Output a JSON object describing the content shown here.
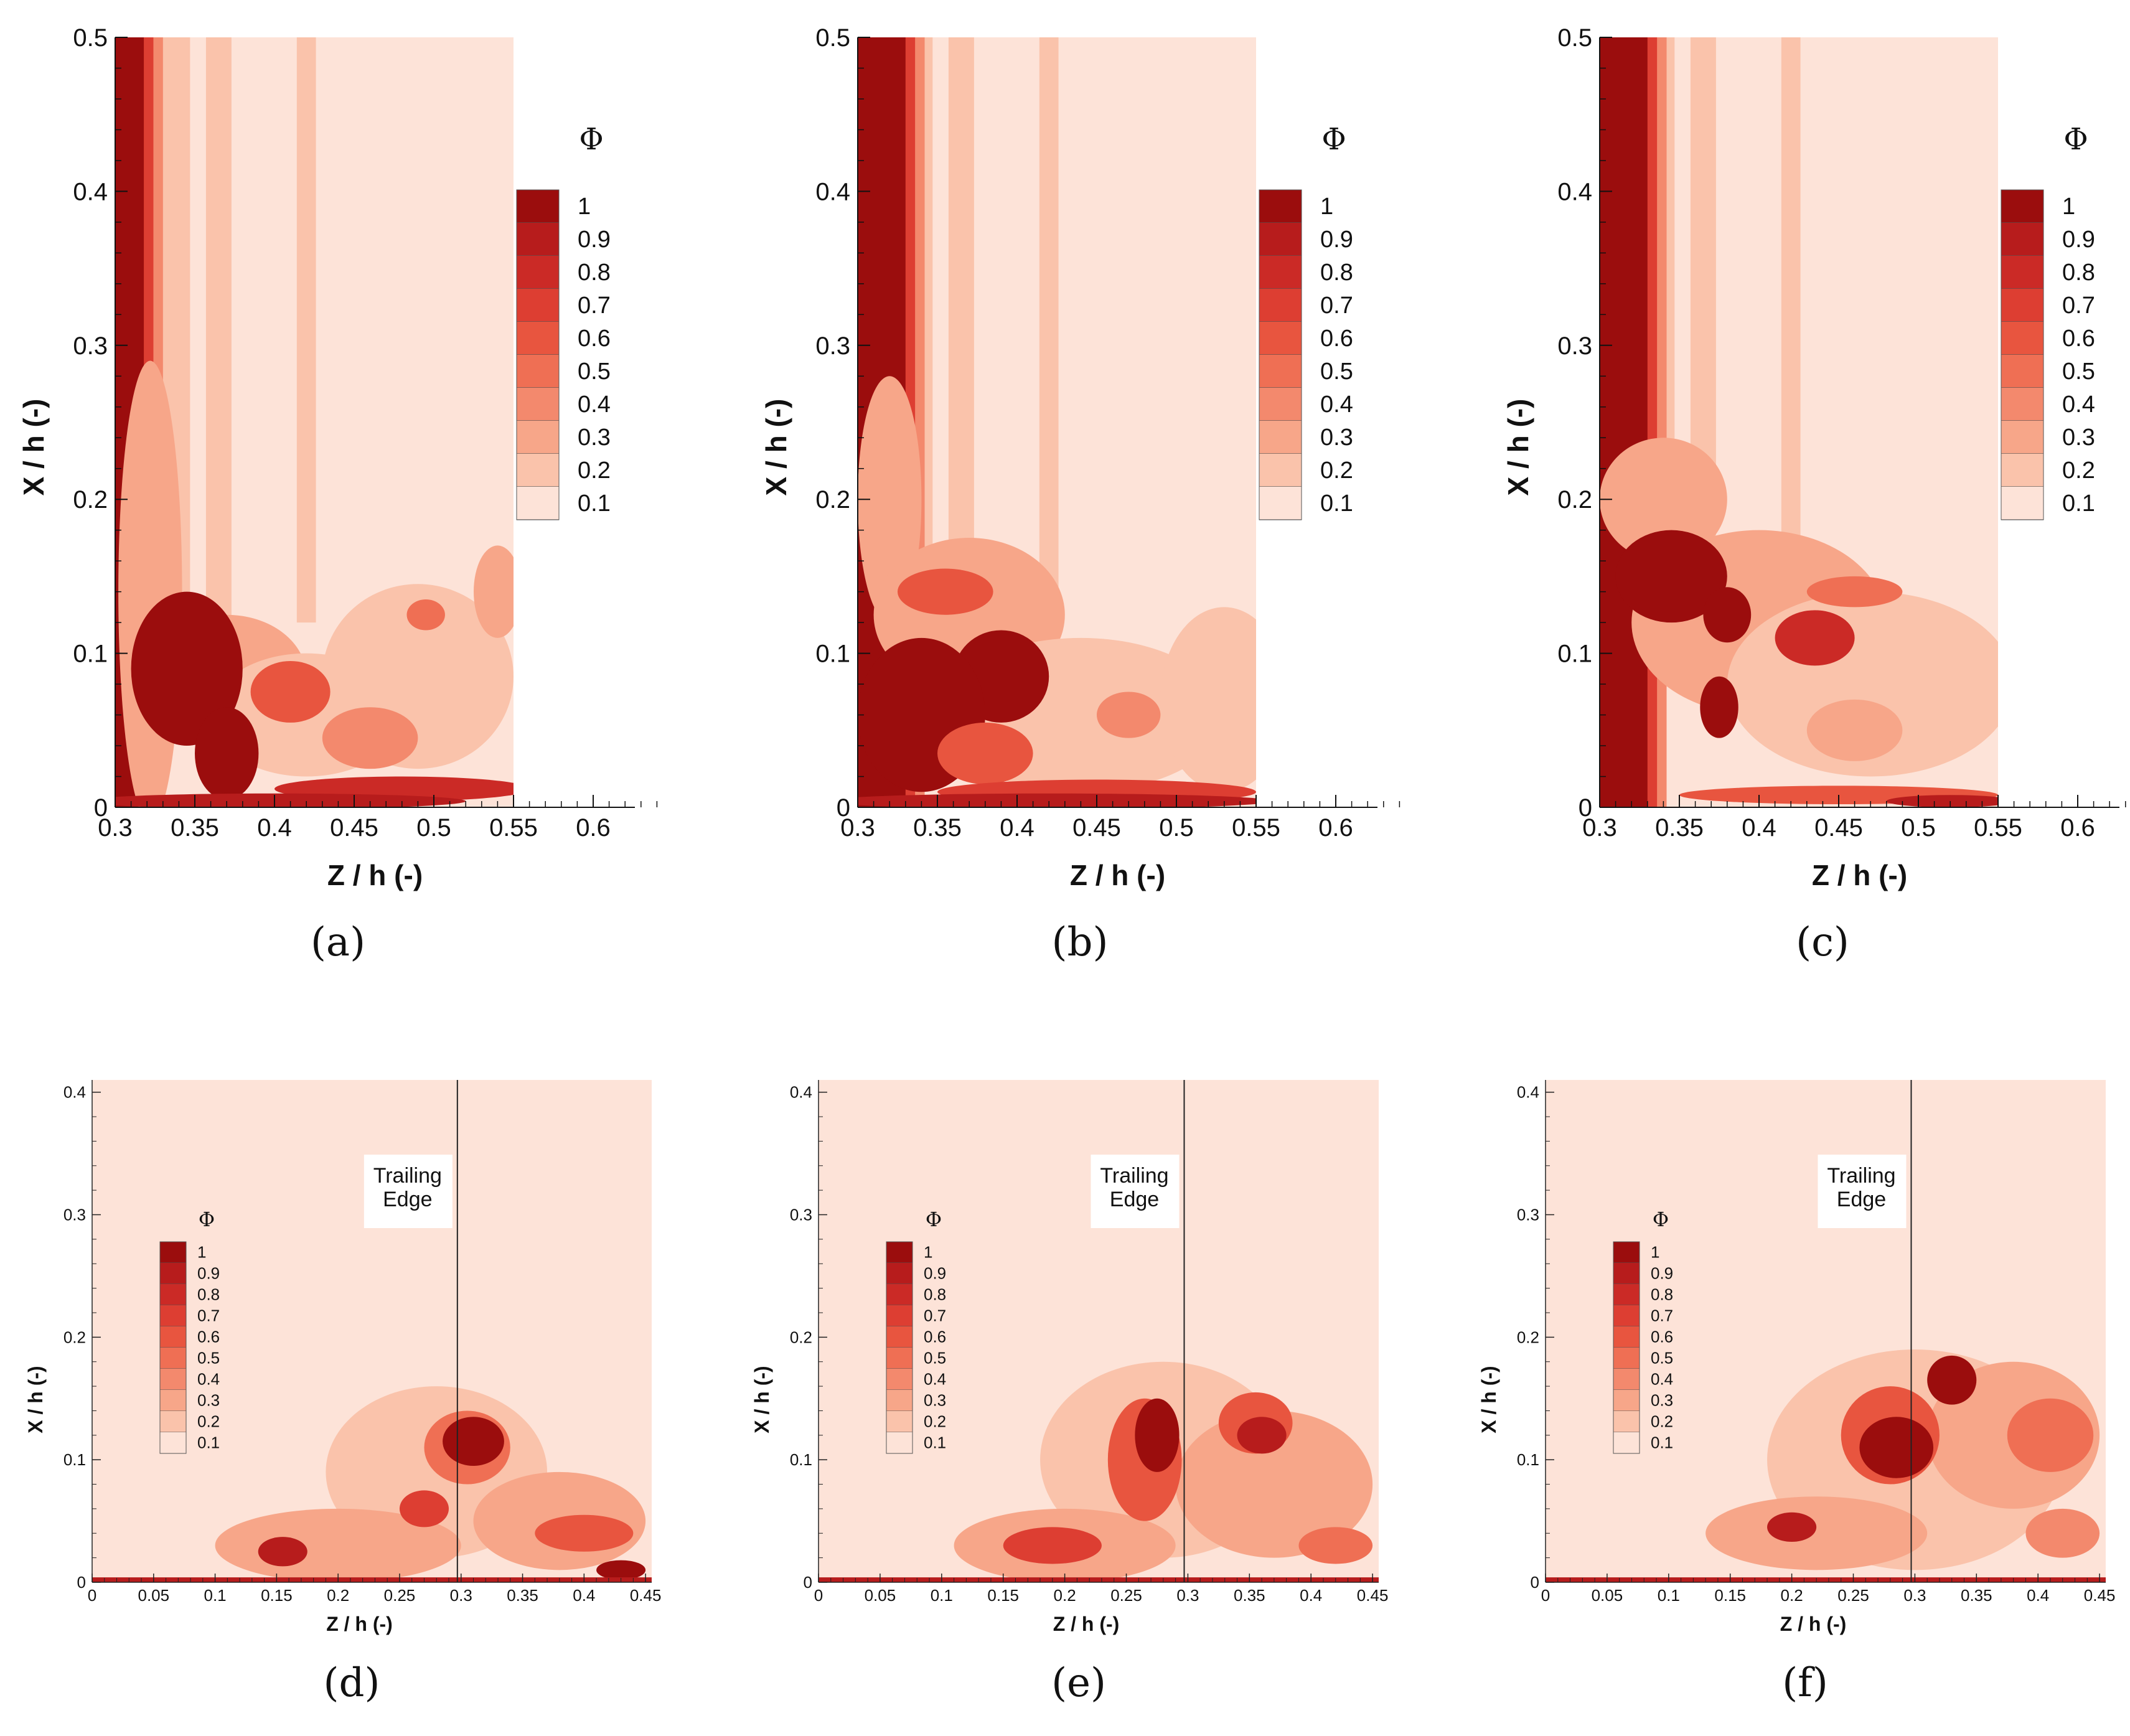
{
  "chart_data": [
    {
      "panel": "(a)",
      "type": "contour",
      "xlabel": "Z / h   (-)",
      "ylabel": "X / h   (-)",
      "xlim": [
        0.3,
        0.55
      ],
      "xaxis_extent": [
        0.3,
        0.64
      ],
      "ylim": [
        0,
        0.5
      ],
      "xticks": [
        "0.3",
        "0.35",
        "0.4",
        "0.45",
        "0.5",
        "0.55",
        "0.6"
      ],
      "yticks": [
        "0",
        "0.1",
        "0.2",
        "0.3",
        "0.4",
        "0.5"
      ],
      "colorbar": {
        "title": "Φ",
        "levels": [
          "1",
          "0.9",
          "0.8",
          "0.7",
          "0.6",
          "0.5",
          "0.4",
          "0.3",
          "0.2",
          "0.1"
        ]
      },
      "background_level": 0.1
    },
    {
      "panel": "(b)",
      "type": "contour",
      "xlabel": "Z / h   (-)",
      "ylabel": "X / h   (-)",
      "xlim": [
        0.3,
        0.55
      ],
      "xaxis_extent": [
        0.3,
        0.64
      ],
      "ylim": [
        0,
        0.5
      ],
      "xticks": [
        "0.3",
        "0.35",
        "0.4",
        "0.45",
        "0.5",
        "0.55",
        "0.6"
      ],
      "yticks": [
        "0",
        "0.1",
        "0.2",
        "0.3",
        "0.4",
        "0.5"
      ],
      "colorbar": {
        "title": "Φ",
        "levels": [
          "1",
          "0.9",
          "0.8",
          "0.7",
          "0.6",
          "0.5",
          "0.4",
          "0.3",
          "0.2",
          "0.1"
        ]
      },
      "background_level": 0.1
    },
    {
      "panel": "(c)",
      "type": "contour",
      "xlabel": "Z / h   (-)",
      "ylabel": "X / h   (-)",
      "xlim": [
        0.3,
        0.55
      ],
      "xaxis_extent": [
        0.3,
        0.64
      ],
      "ylim": [
        0,
        0.5
      ],
      "xticks": [
        "0.3",
        "0.35",
        "0.4",
        "0.45",
        "0.5",
        "0.55",
        "0.6"
      ],
      "yticks": [
        "0",
        "0.1",
        "0.2",
        "0.3",
        "0.4",
        "0.5"
      ],
      "colorbar": {
        "title": "Φ",
        "levels": [
          "1",
          "0.9",
          "0.8",
          "0.7",
          "0.6",
          "0.5",
          "0.4",
          "0.3",
          "0.2",
          "0.1"
        ]
      },
      "background_level": 0.1
    },
    {
      "panel": "(d)",
      "type": "contour",
      "xlabel": "Z / h   (-)",
      "ylabel": "X / h   (-)",
      "xlim": [
        0,
        0.455
      ],
      "ylim": [
        0,
        0.41
      ],
      "xticks": [
        "0",
        "0.05",
        "0.1",
        "0.15",
        "0.2",
        "0.25",
        "0.3",
        "0.35",
        "0.4",
        "0.45"
      ],
      "yticks": [
        "0",
        "0.1",
        "0.2",
        "0.3",
        "0.4"
      ],
      "colorbar": {
        "title": "Φ",
        "levels": [
          "1",
          "0.9",
          "0.8",
          "0.7",
          "0.6",
          "0.5",
          "0.4",
          "0.3",
          "0.2",
          "0.1"
        ]
      },
      "annotation": {
        "text_line1": "Trailing",
        "text_line2": "Edge",
        "z": 0.297
      },
      "background_level": 0.1
    },
    {
      "panel": "(e)",
      "type": "contour",
      "xlabel": "Z / h   (-)",
      "ylabel": "X / h   (-)",
      "xlim": [
        0,
        0.455
      ],
      "ylim": [
        0,
        0.41
      ],
      "xticks": [
        "0",
        "0.05",
        "0.1",
        "0.15",
        "0.2",
        "0.25",
        "0.3",
        "0.35",
        "0.4",
        "0.45"
      ],
      "yticks": [
        "0",
        "0.1",
        "0.2",
        "0.3",
        "0.4"
      ],
      "colorbar": {
        "title": "Φ",
        "levels": [
          "1",
          "0.9",
          "0.8",
          "0.7",
          "0.6",
          "0.5",
          "0.4",
          "0.3",
          "0.2",
          "0.1"
        ]
      },
      "annotation": {
        "text_line1": "Trailing",
        "text_line2": "Edge",
        "z": 0.297
      },
      "background_level": 0.1
    },
    {
      "panel": "(f)",
      "type": "contour",
      "xlabel": "Z / h   (-)",
      "ylabel": "X / h   (-)",
      "xlim": [
        0,
        0.455
      ],
      "ylim": [
        0,
        0.41
      ],
      "xticks": [
        "0",
        "0.05",
        "0.1",
        "0.15",
        "0.2",
        "0.25",
        "0.3",
        "0.35",
        "0.4",
        "0.45"
      ],
      "yticks": [
        "0",
        "0.1",
        "0.2",
        "0.3",
        "0.4"
      ],
      "colorbar": {
        "title": "Φ",
        "levels": [
          "1",
          "0.9",
          "0.8",
          "0.7",
          "0.6",
          "0.5",
          "0.4",
          "0.3",
          "0.2",
          "0.1"
        ]
      },
      "annotation": {
        "text_line1": "Trailing",
        "text_line2": "Edge",
        "z": 0.297
      },
      "background_level": 0.1
    }
  ],
  "colors": {
    "level_1": "#9b0d0d",
    "level_0.9": "#b71c1c",
    "level_0.8": "#cb2a26",
    "level_0.7": "#dd3e32",
    "level_0.6": "#e8553f",
    "level_0.5": "#ef6f54",
    "level_0.4": "#f3896d",
    "level_0.3": "#f7a689",
    "level_0.2": "#fac3ab",
    "level_0.1": "#fde3d8"
  }
}
